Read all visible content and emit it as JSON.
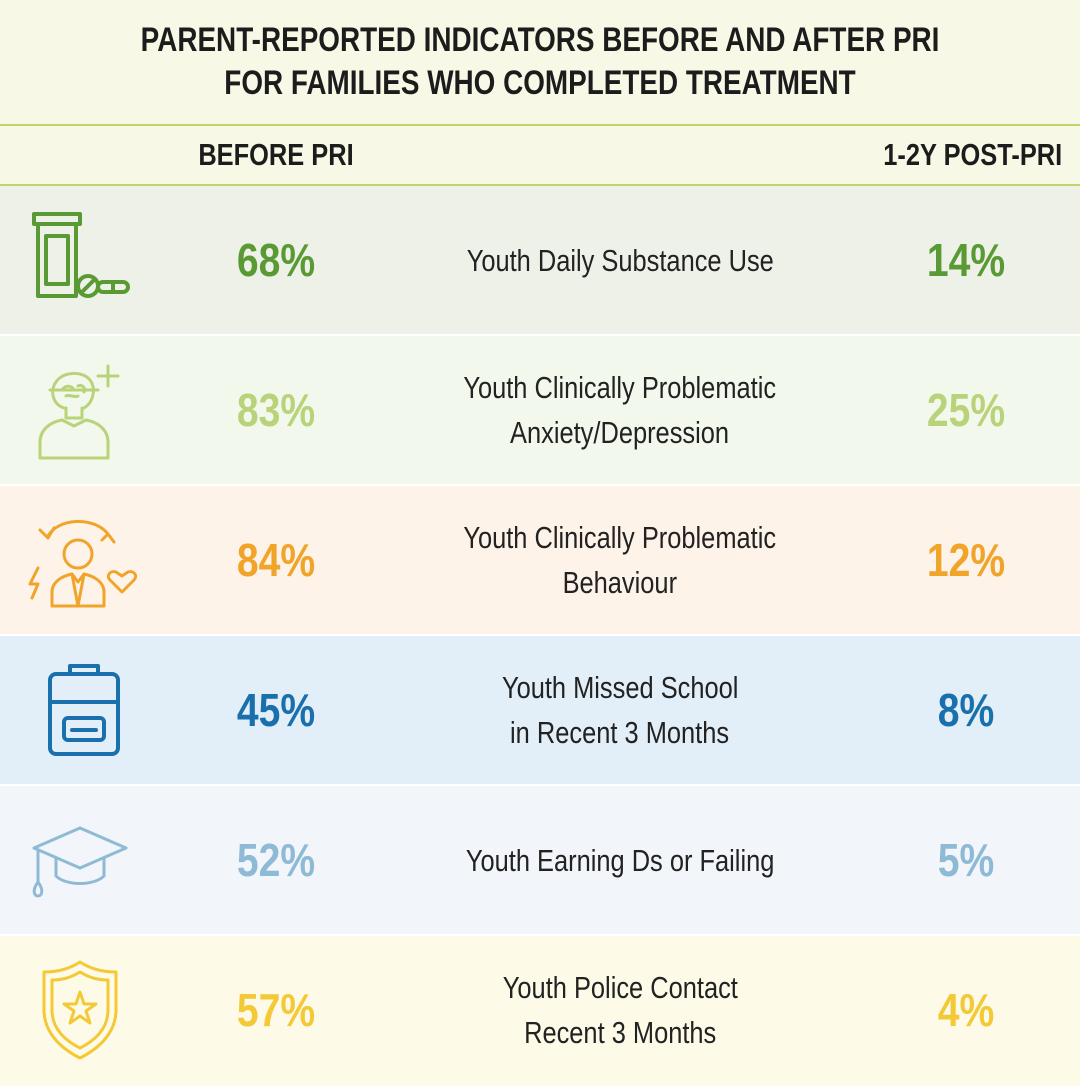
{
  "title": {
    "line1": "PARENT-REPORTED INDICATORS BEFORE AND AFTER PRI",
    "line2": "FOR FAMILIES WHO COMPLETED TREATMENT"
  },
  "columns": {
    "before": "BEFORE PRI",
    "after": "1-2Y POST-PRI"
  },
  "chart_data": {
    "type": "table",
    "columns": [
      "BEFORE PRI",
      "1-2Y POST-PRI"
    ],
    "categories": [
      "Youth Daily Substance Use",
      "Youth Clinically Problematic Anxiety/Depression",
      "Youth Clinically Problematic Behaviour",
      "Youth Missed School in Recent 3 Months",
      "Youth Earning Ds or Failing",
      "Youth Police Contact Recent 3 Months"
    ],
    "series": [
      {
        "name": "BEFORE PRI",
        "values": [
          68,
          83,
          84,
          45,
          52,
          57
        ]
      },
      {
        "name": "1-2Y POST-PRI",
        "values": [
          14,
          25,
          12,
          8,
          5,
          4
        ]
      }
    ],
    "unit": "%"
  },
  "rows": [
    {
      "icon": "pill-bottle-icon",
      "color": "#5a9a34",
      "bg": "#eef1e8",
      "before": "68%",
      "after": "14%",
      "label1": "Youth Daily Substance Use",
      "label2": ""
    },
    {
      "icon": "mind-health-icon",
      "color": "#b9d37a",
      "bg": "#f3f8ec",
      "before": "83%",
      "after": "25%",
      "label1": "Youth Clinically Problematic",
      "label2": "Anxiety/Depression"
    },
    {
      "icon": "behaviour-icon",
      "color": "#f1a42a",
      "bg": "#fdf3e8",
      "before": "84%",
      "after": "12%",
      "label1": "Youth Clinically Problematic",
      "label2": "Behaviour"
    },
    {
      "icon": "backpack-icon",
      "color": "#1a6fad",
      "bg": "#e3eff8",
      "before": "45%",
      "after": "8%",
      "label1": "Youth Missed School",
      "label2": "in Recent 3 Months"
    },
    {
      "icon": "graduation-cap-icon",
      "color": "#8fbad6",
      "bg": "#f2f5f9",
      "before": "52%",
      "after": "5%",
      "label1": "Youth Earning Ds or Failing",
      "label2": ""
    },
    {
      "icon": "police-badge-icon",
      "color": "#f3c938",
      "bg": "#fdfbe8",
      "before": "57%",
      "after": "4%",
      "label1": "Youth Police Contact",
      "label2": "Recent 3 Months"
    }
  ]
}
